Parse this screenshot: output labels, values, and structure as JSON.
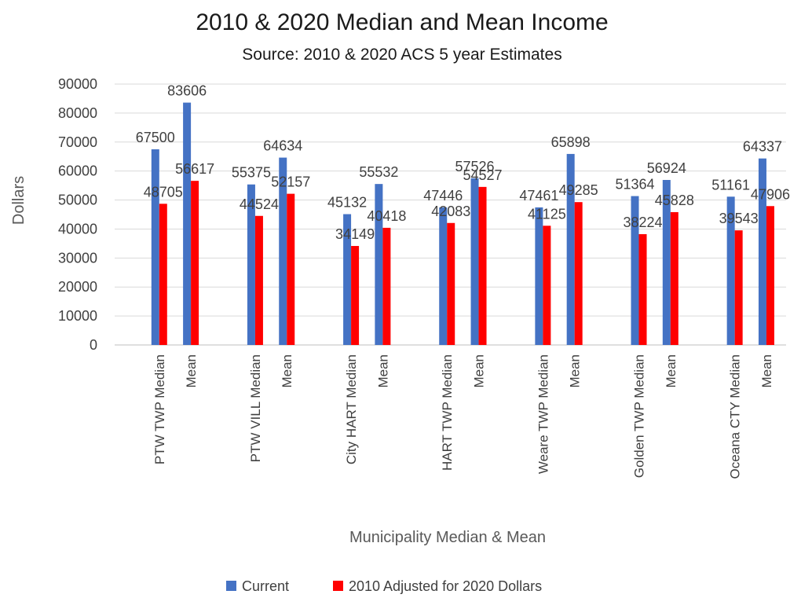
{
  "chart_data": {
    "type": "bar",
    "title": "2010 & 2020 Median and Mean Income",
    "subtitle": "Source: 2010 & 2020 ACS 5 year Estimates",
    "xlabel": "Municipality  Median & Mean",
    "ylabel": "Dollars",
    "ylim": [
      0,
      90000
    ],
    "yticks": [
      0,
      10000,
      20000,
      30000,
      40000,
      50000,
      60000,
      70000,
      80000,
      90000
    ],
    "grid": true,
    "legend_position": "bottom",
    "categories": [
      "PTW TWP Median",
      "Mean",
      "PTW VILL Median",
      "Mean",
      "City HART Median",
      "Mean",
      "HART TWP Median",
      "Mean",
      "Weare TWP Median",
      "Mean",
      "Golden TWP Median",
      "Mean",
      "Oceana CTY Median",
      "Mean"
    ],
    "series": [
      {
        "name": "Current",
        "color": "#4472C4",
        "values": [
          67500,
          83606,
          55375,
          64634,
          45132,
          55532,
          47446,
          57526,
          47461,
          65898,
          51364,
          56924,
          51161,
          64337
        ]
      },
      {
        "name": "2010 Adjusted for 2020 Dollars",
        "color": "#FF0000",
        "values": [
          48705,
          56617,
          44524,
          52157,
          34149,
          40418,
          42083,
          54527,
          41125,
          49285,
          38224,
          45828,
          39543,
          47906
        ]
      }
    ]
  }
}
